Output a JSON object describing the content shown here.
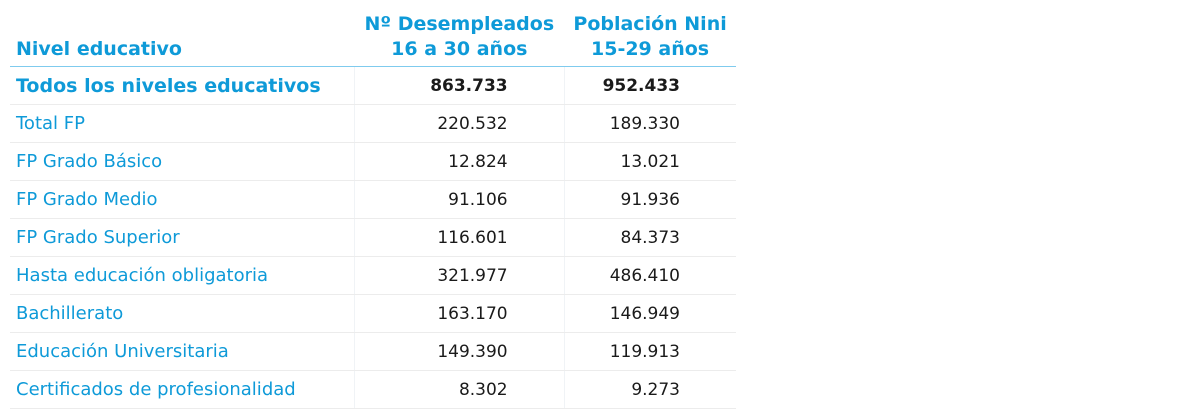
{
  "headers": {
    "level": "Nivel educativo",
    "col1_line1": "Nº Desempleados",
    "col1_line2": "16 a 30 años",
    "col2_line1": "Población Nini",
    "col2_line2": "15-29 años"
  },
  "rows": [
    {
      "label": "Todos los niveles educativos",
      "desempleados": "863.733",
      "nini": "952.433"
    },
    {
      "label": "Total FP",
      "desempleados": "220.532",
      "nini": "189.330"
    },
    {
      "label": "FP Grado Básico",
      "desempleados": "12.824",
      "nini": "13.021"
    },
    {
      "label": "FP Grado Medio",
      "desempleados": "91.106",
      "nini": "91.936"
    },
    {
      "label": "FP Grado Superior",
      "desempleados": "116.601",
      "nini": "84.373"
    },
    {
      "label": "Hasta educación obligatoria",
      "desempleados": "321.977",
      "nini": "486.410"
    },
    {
      "label": "Bachillerato",
      "desempleados": "163.170",
      "nini": "146.949"
    },
    {
      "label": "Educación Universitaria",
      "desempleados": "149.390",
      "nini": "119.913"
    },
    {
      "label": "Certificados de profesionalidad",
      "desempleados": "8.302",
      "nini": "9.273"
    }
  ],
  "colors": {
    "accent": "#0e9ad8",
    "text": "#1a1a1a"
  }
}
